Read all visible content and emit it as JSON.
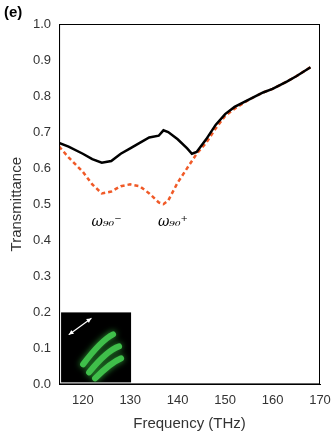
{
  "chart_data": {
    "type": "line",
    "title": "(e)",
    "x_label": "Frequency (THz)",
    "y_label": "Transmittance",
    "xlim": [
      115,
      170
    ],
    "xticks": [
      120,
      130,
      140,
      150,
      160,
      170
    ],
    "ylim": [
      0,
      1
    ],
    "yticks": [
      {
        "value": 0,
        "label": "0.0"
      },
      0.1,
      0.2,
      0.3,
      0.4,
      0.5,
      0.6,
      0.7,
      0.8,
      0.9,
      {
        "value": 1,
        "label": "1.0"
      }
    ],
    "grid": false,
    "series": [
      {
        "color": "#000000",
        "line_style": "solid",
        "x": [
          115,
          117,
          120,
          122,
          124,
          126,
          128,
          130,
          132,
          134,
          136,
          137,
          138,
          140,
          142,
          143,
          144,
          146,
          148,
          150,
          152,
          155,
          158,
          160,
          163,
          165,
          168
        ],
        "values": [
          0.67,
          0.66,
          0.64,
          0.625,
          0.615,
          0.62,
          0.64,
          0.655,
          0.67,
          0.685,
          0.69,
          0.705,
          0.7,
          0.68,
          0.655,
          0.64,
          0.645,
          0.68,
          0.72,
          0.75,
          0.77,
          0.79,
          0.81,
          0.82,
          0.84,
          0.855,
          0.88
        ]
      },
      {
        "color": "#f05a28",
        "line_style": "dashed",
        "x": [
          115,
          117,
          120,
          122,
          124,
          126,
          128,
          130,
          132,
          134,
          136,
          137,
          138,
          140,
          142,
          144,
          146,
          148,
          150,
          152,
          155,
          158,
          160,
          163,
          165,
          168
        ],
        "values": [
          0.66,
          0.63,
          0.59,
          0.555,
          0.53,
          0.535,
          0.55,
          0.555,
          0.55,
          0.53,
          0.505,
          0.5,
          0.51,
          0.56,
          0.6,
          0.64,
          0.67,
          0.71,
          0.745,
          0.765,
          0.79,
          0.81,
          0.82,
          0.84,
          0.855,
          0.88
        ]
      }
    ],
    "annotations": [
      {
        "text": "ω₉₀⁻",
        "x": 125,
        "y": 0.45
      },
      {
        "text": "ω₉₀⁺",
        "x": 139,
        "y": 0.45
      }
    ]
  }
}
